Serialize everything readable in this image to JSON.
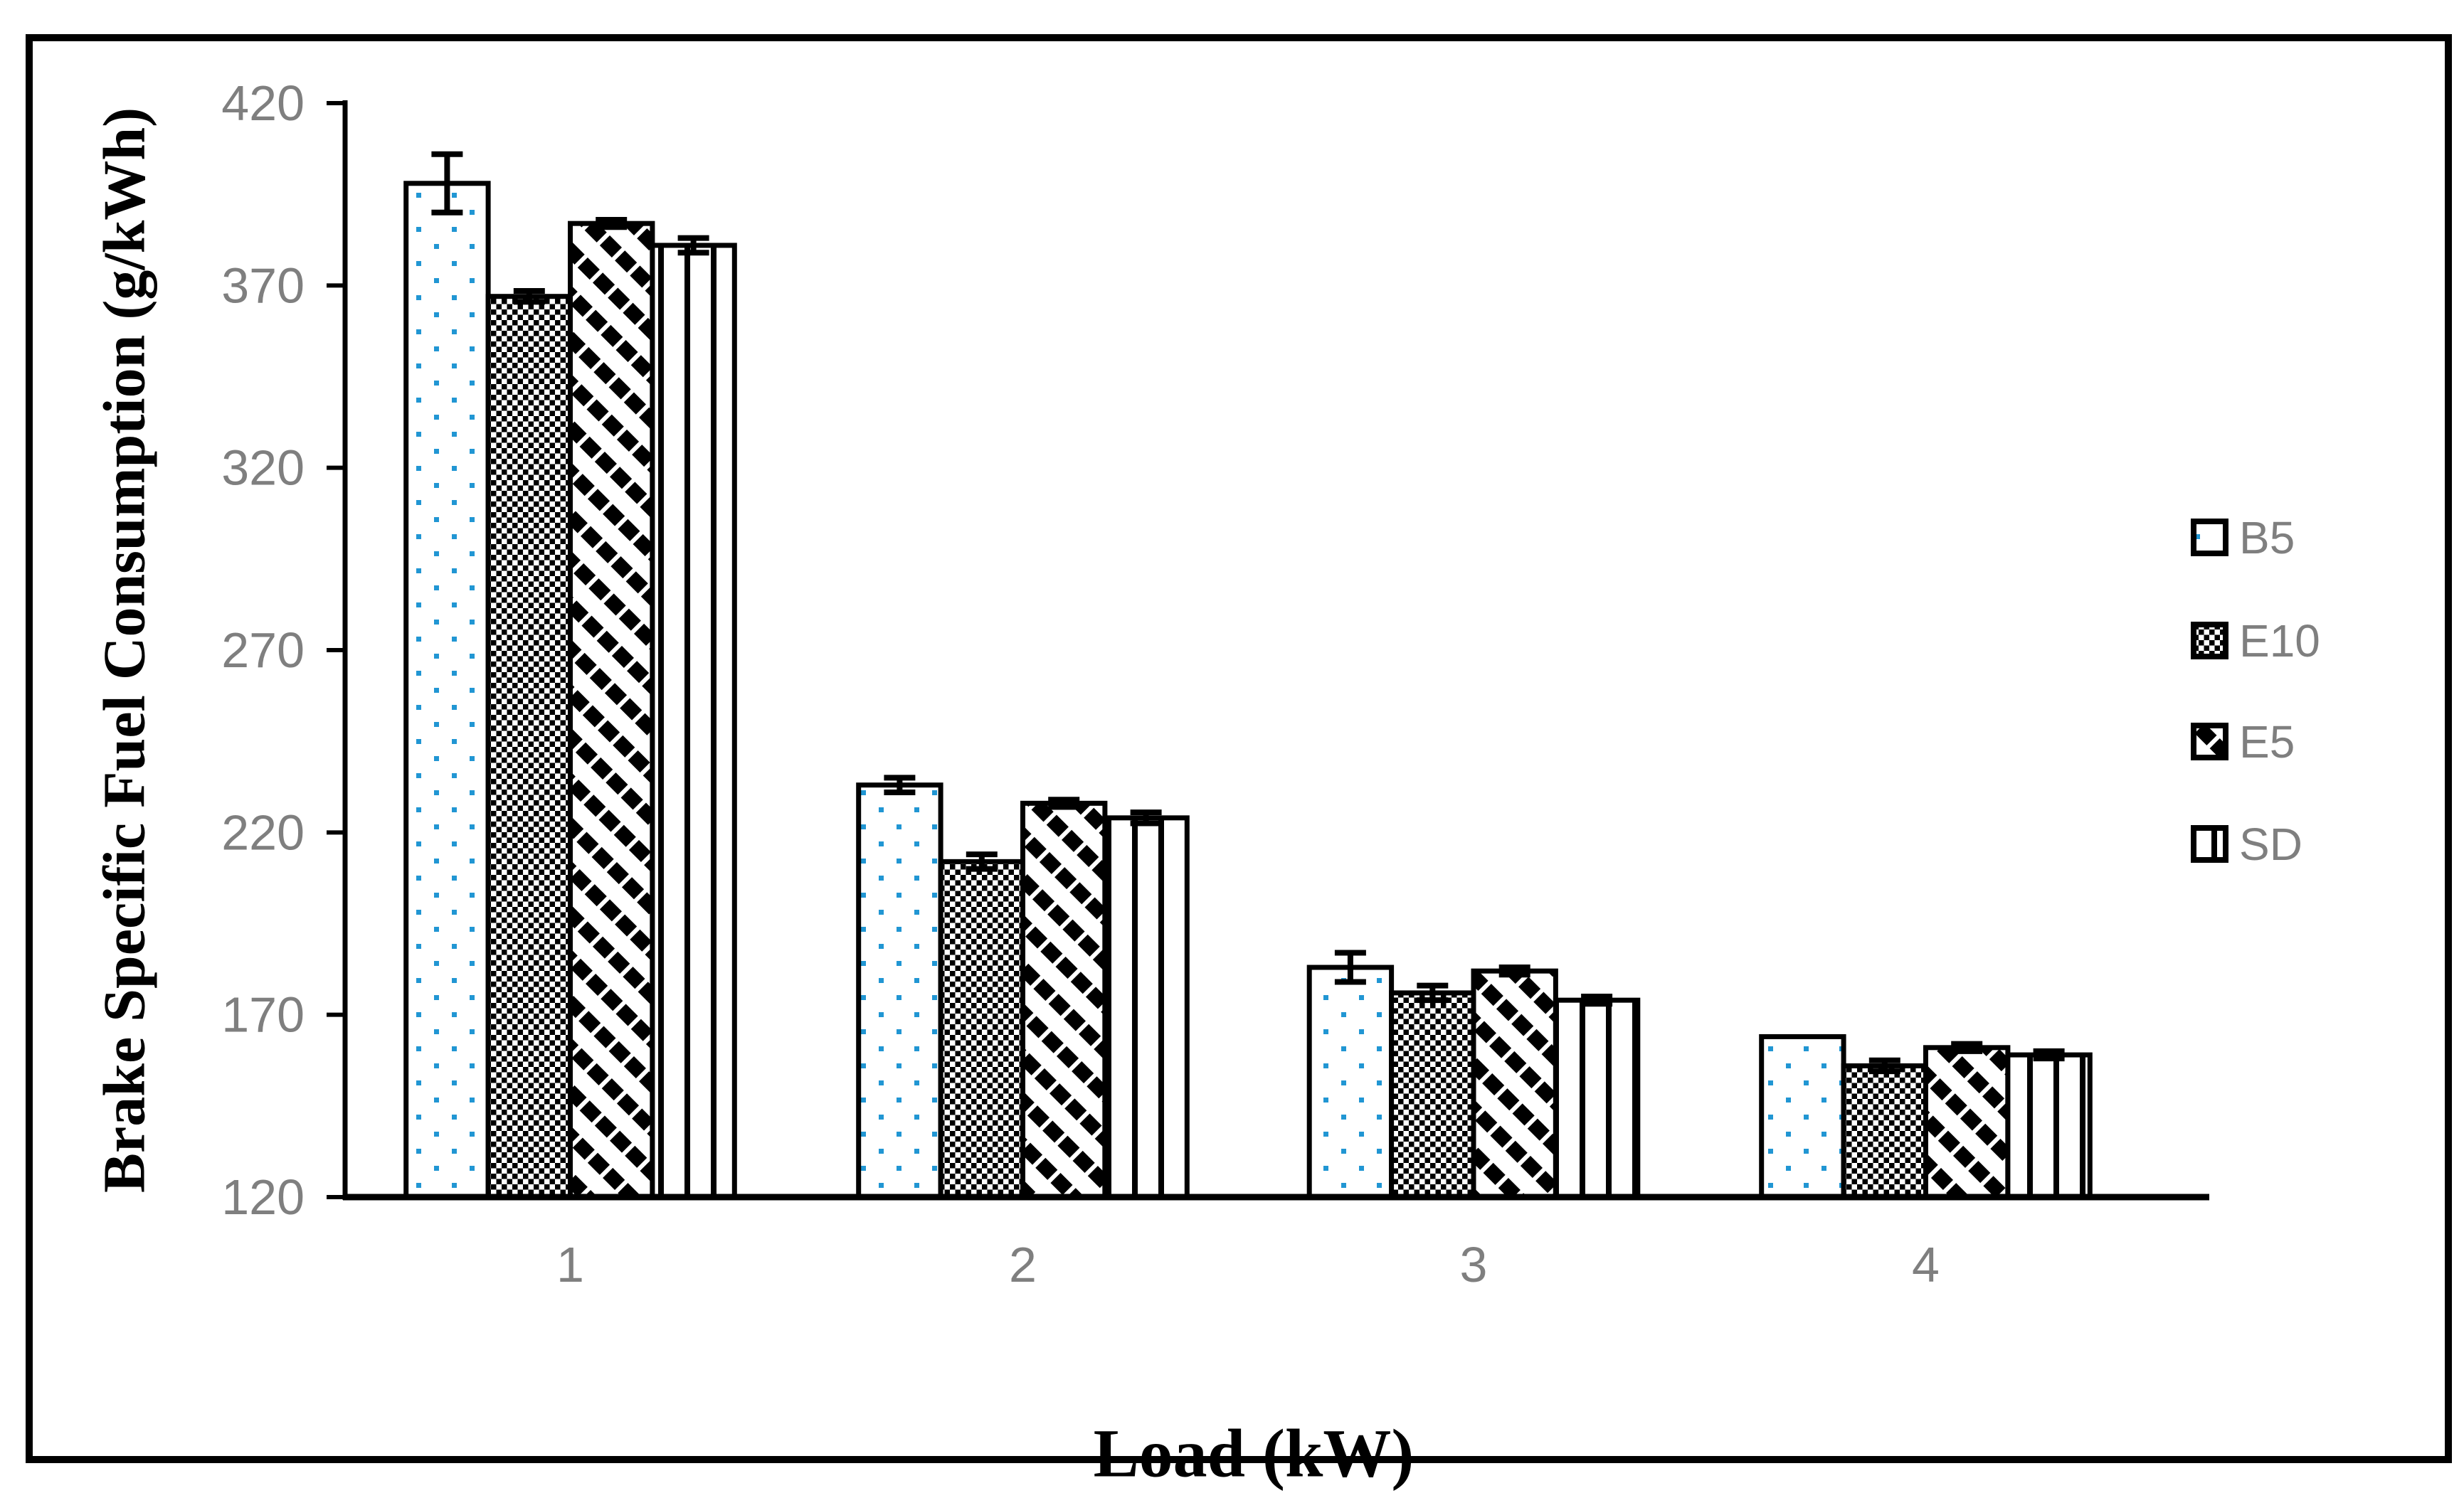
{
  "figure": {
    "frame": "black rectangular border around whole figure"
  },
  "chart_data": {
    "type": "bar",
    "title": "",
    "xlabel": "Load (kW)",
    "ylabel": "Brake Specific Fuel Consumption (g/kWh)",
    "categories": [
      "1",
      "2",
      "3",
      "4"
    ],
    "series": [
      {
        "name": "B5",
        "pattern": "blue-dots",
        "values": [
          398,
          233,
          183,
          164
        ],
        "errors": [
          8,
          2,
          4,
          0
        ]
      },
      {
        "name": "E10",
        "pattern": "checkerboard",
        "values": [
          367,
          212,
          176,
          156
        ],
        "errors": [
          1.5,
          2,
          2,
          1.5
        ]
      },
      {
        "name": "E5",
        "pattern": "diagonal-stripes",
        "values": [
          387,
          228,
          182,
          161
        ],
        "errors": [
          1,
          1,
          1,
          1
        ]
      },
      {
        "name": "SD",
        "pattern": "vertical-stripes",
        "values": [
          381,
          224,
          174,
          159
        ],
        "errors": [
          2,
          1.5,
          1,
          1
        ]
      }
    ],
    "ylim": [
      120,
      420
    ],
    "yticks": [
      420,
      370,
      320,
      270,
      220,
      170,
      120
    ],
    "grid": false,
    "legend_position": "right-middle-outside",
    "error_bars": "black whiskers with caps on top of bars",
    "colors": {
      "dot_blue": "#2196D3",
      "label_gray": "#7F7F7F",
      "ink_black": "#000000",
      "background": "#FFFFFF"
    }
  }
}
